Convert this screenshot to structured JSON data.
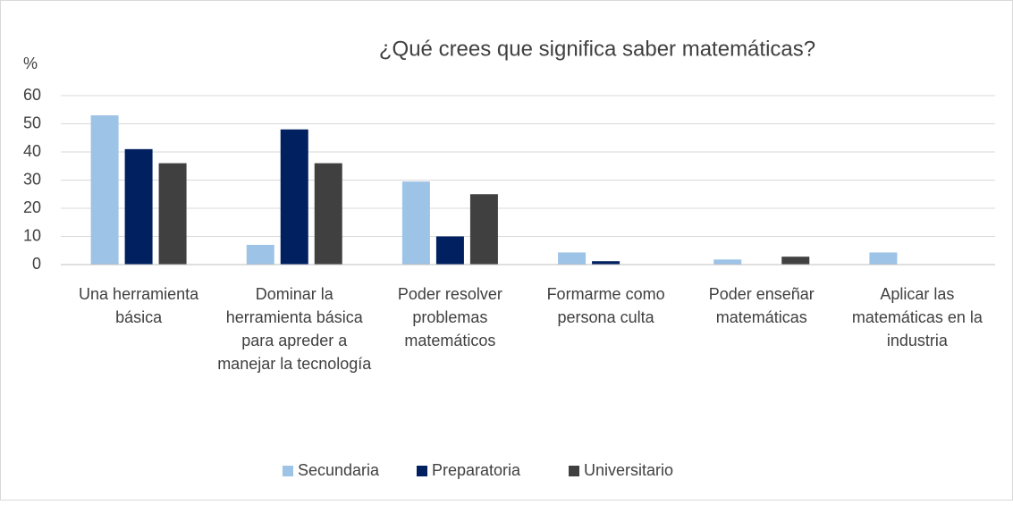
{
  "chart_data": {
    "type": "bar",
    "title": "¿Qué crees que significa saber matemáticas?",
    "y_label": "%",
    "categories": [
      "Una herramienta básica",
      "Dominar la herramienta básica para apreder a manejar la tecnología",
      "Poder resolver problemas matemáticos",
      "Formarme como persona culta",
      "Poder enseñar matemáticas",
      "Aplicar las matemáticas en la industria"
    ],
    "series": [
      {
        "name": "Secundaria",
        "color": "#9dc3e6",
        "values": [
          53,
          7,
          29.5,
          4.3,
          1.8,
          4.3
        ]
      },
      {
        "name": "Preparatoria",
        "color": "#002060",
        "values": [
          41,
          48,
          10,
          1.2,
          0,
          0
        ]
      },
      {
        "name": "Universitario",
        "color": "#404040",
        "values": [
          36,
          36,
          25,
          0,
          2.8,
          0
        ]
      }
    ],
    "ylim": [
      0,
      60
    ],
    "yticks": [
      0,
      10,
      20,
      30,
      40,
      50,
      60
    ],
    "grid": true,
    "legend": "bottom"
  }
}
